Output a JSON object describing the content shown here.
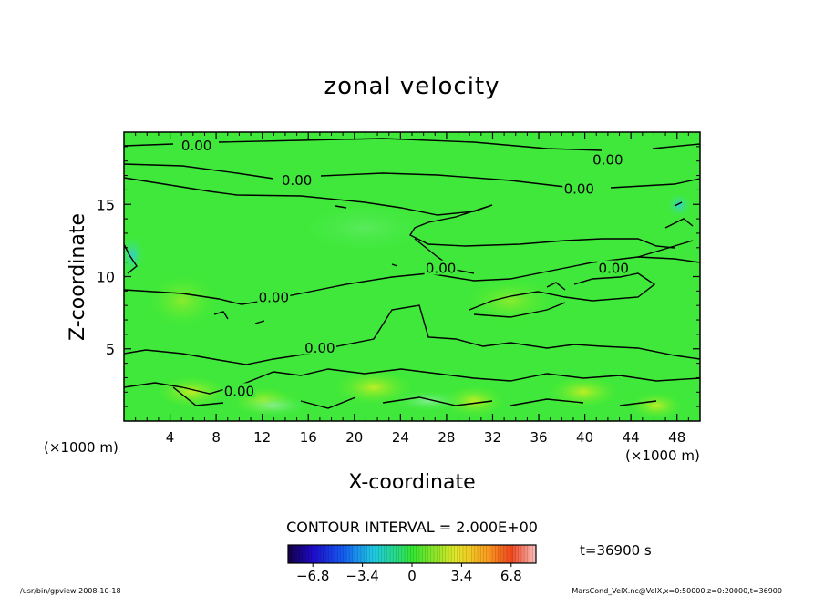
{
  "chart_data": {
    "type": "heatmap",
    "title": "zonal velocity",
    "xlabel": "X-coordinate",
    "ylabel": "Z-coordinate",
    "x_unit_label_left": "(×1000 m)",
    "x_unit_label_right": "(×1000 m)",
    "xlim": [
      0,
      50
    ],
    "ylim": [
      0,
      20
    ],
    "x_ticks": [
      4,
      8,
      12,
      16,
      20,
      24,
      28,
      32,
      36,
      40,
      44,
      48
    ],
    "y_ticks": [
      5,
      10,
      15
    ],
    "contour_interval_text": "CONTOUR INTERVAL = 2.000E+00",
    "time_label": "t=36900 s",
    "colorbar": {
      "min": -8.5,
      "max": 8.5,
      "ticks": [
        "−6.8",
        "−3.4",
        "0",
        "3.4",
        "6.8"
      ],
      "tick_values": [
        -6.8,
        -3.4,
        0,
        3.4,
        6.8
      ]
    },
    "contour_labels": [
      {
        "text": "0.00",
        "x": 6.3,
        "z": 19.0
      },
      {
        "text": "0.00",
        "x": 15.0,
        "z": 16.6
      },
      {
        "text": "0.00",
        "x": 42.0,
        "z": 18.0
      },
      {
        "text": "0.00",
        "x": 39.5,
        "z": 16.0
      },
      {
        "text": "0.00",
        "x": 27.5,
        "z": 10.5
      },
      {
        "text": "0.00",
        "x": 42.5,
        "z": 10.5
      },
      {
        "text": "0.00",
        "x": 13.0,
        "z": 8.5
      },
      {
        "text": "0.00",
        "x": 17.0,
        "z": 5.0
      },
      {
        "text": "0.00",
        "x": 10.0,
        "z": 2.0
      }
    ],
    "colors": {
      "background_field": "#33ee33",
      "positive_high": "#ffee22",
      "negative_low": "#22ccee"
    }
  },
  "footer": {
    "left": "/usr/bin/gpview   2008-10-18",
    "right": "MarsCond_VelX.nc@VelX,x=0:50000,z=0:20000,t=36900"
  }
}
